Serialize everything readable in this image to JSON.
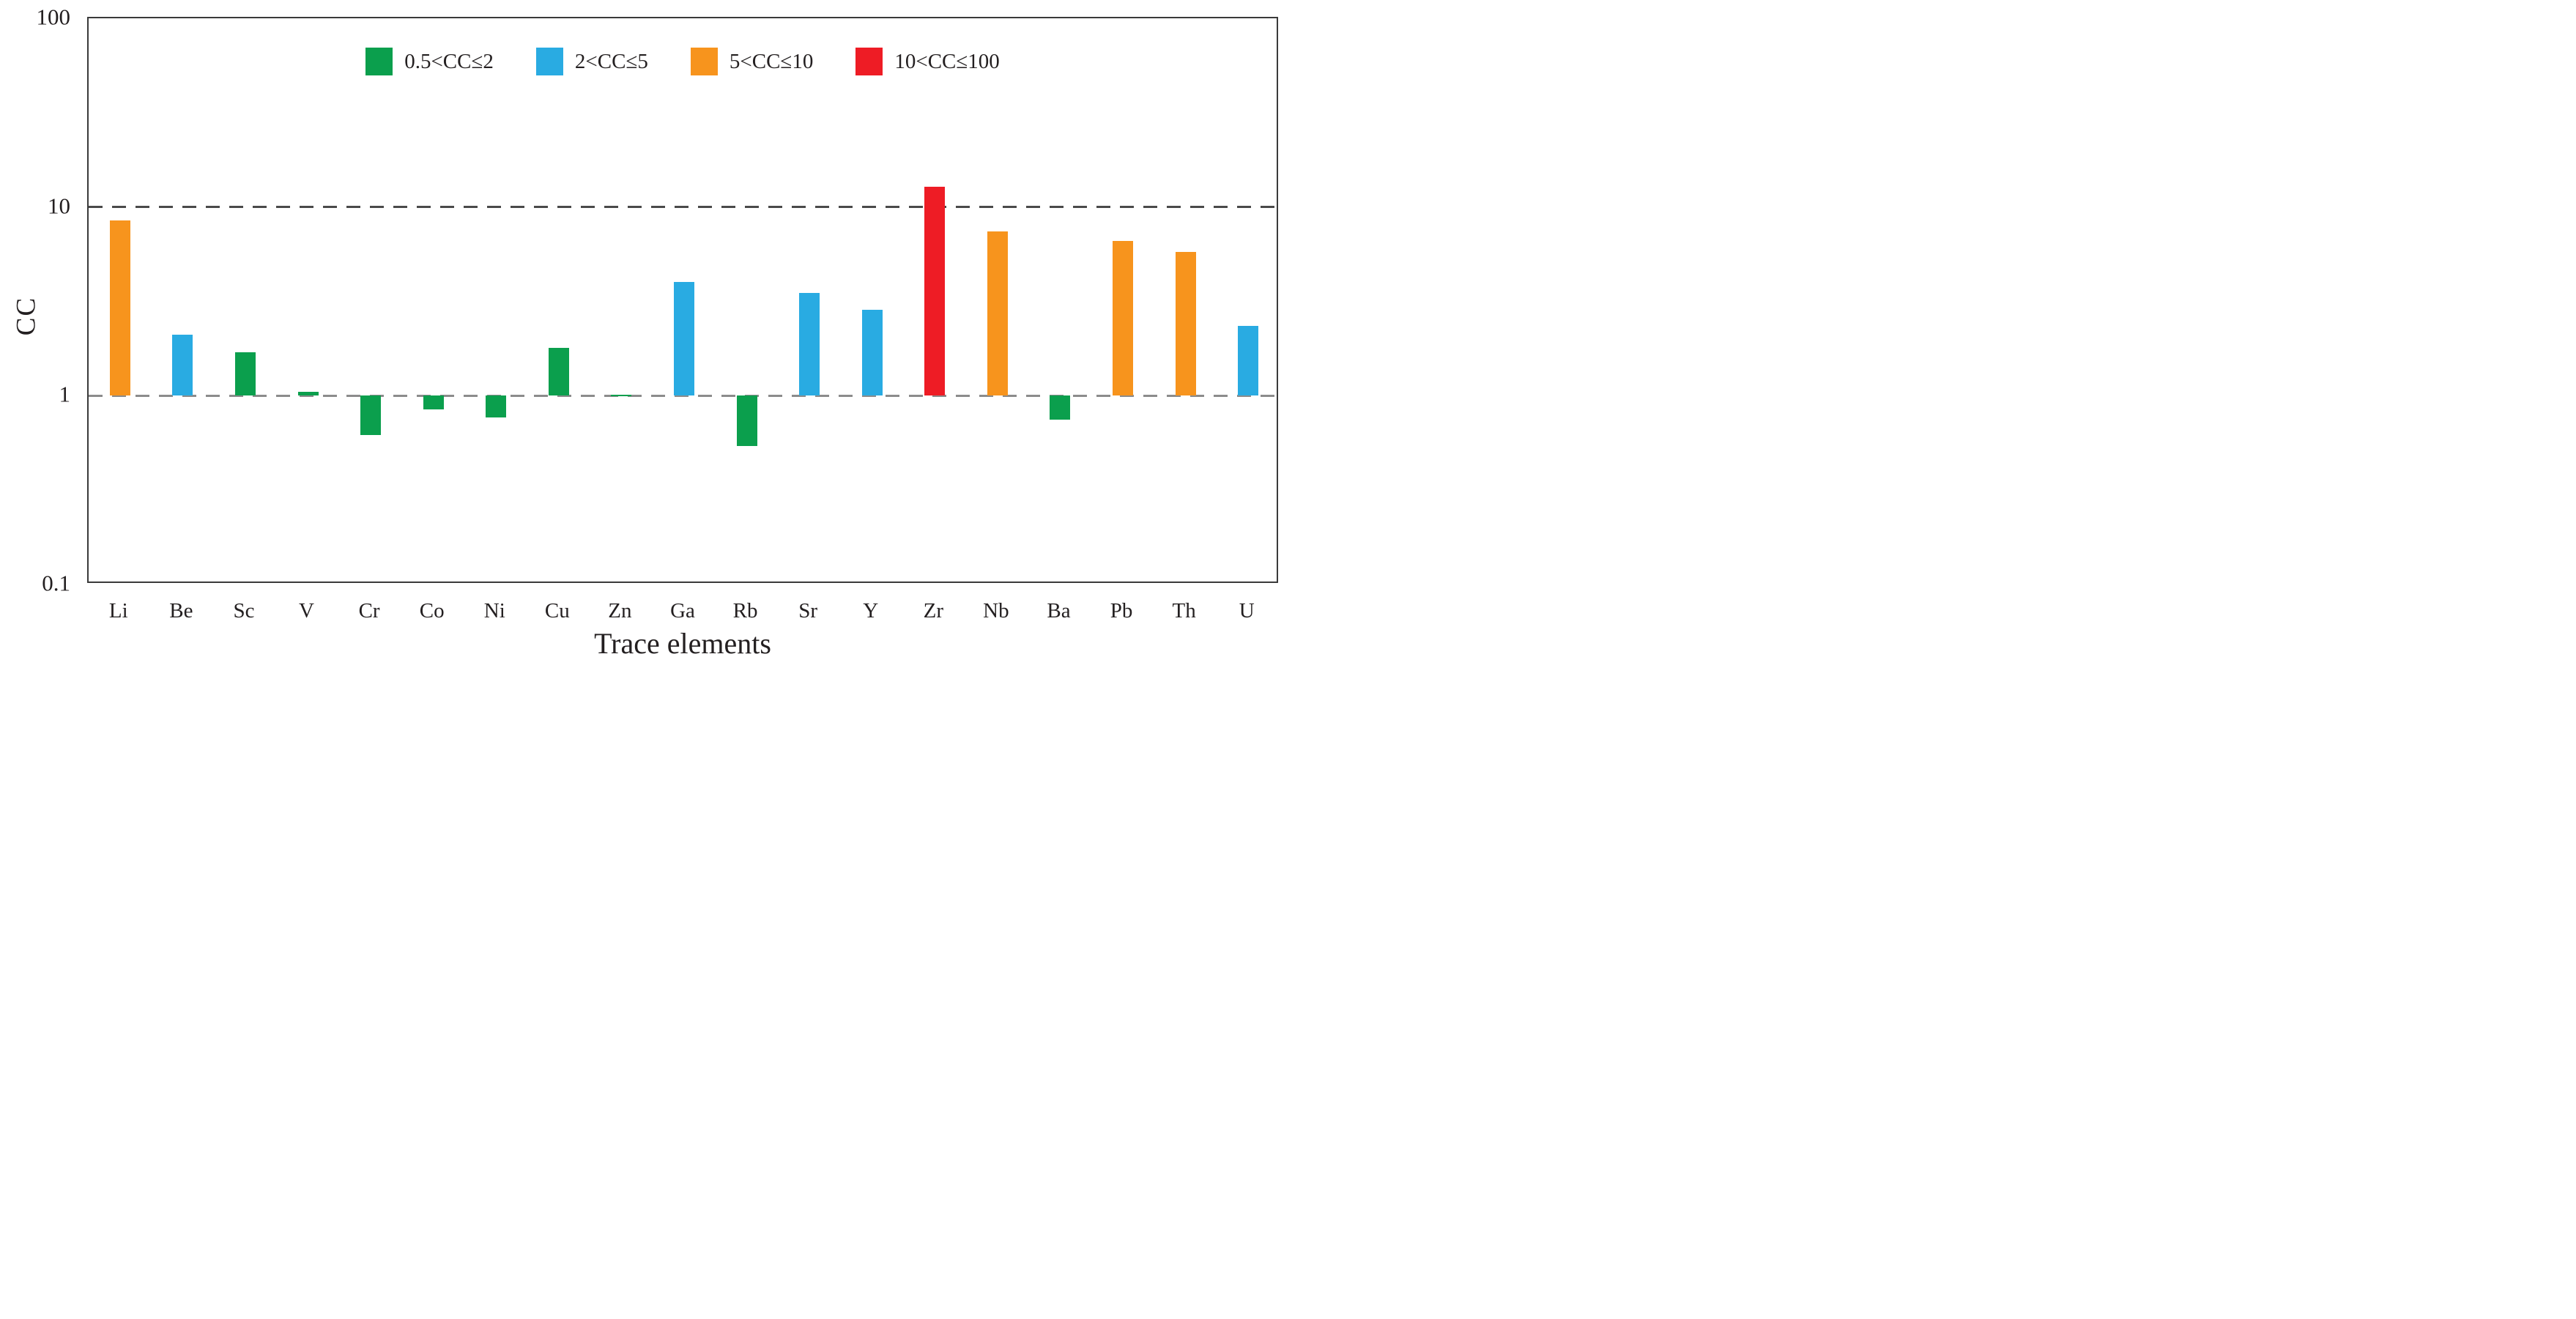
{
  "legend": [
    {
      "label": "0.5<CC≤2",
      "color": "#0B9F4D"
    },
    {
      "label": "2<CC≤5",
      "color": "#29ABE2"
    },
    {
      "label": "5<CC≤10",
      "color": "#F7941D"
    },
    {
      "label": "10<CC≤100",
      "color": "#EE1C25"
    }
  ],
  "chart_data": {
    "type": "bar",
    "title": "",
    "xlabel": "Trace elements",
    "ylabel": "CC",
    "y_scale": "log",
    "ylim": [
      0.1,
      100
    ],
    "y_ticks": [
      "100",
      "10",
      "1",
      "0.1"
    ],
    "gridlines": [
      {
        "value": 10,
        "color": "#4a4a4a"
      },
      {
        "value": 1,
        "color": "#8c8c8c"
      }
    ],
    "grid": "horizontal dashed lines at CC=1 and CC=10",
    "legend_position": "top-inside",
    "baseline": 1,
    "categories": [
      "Li",
      "Be",
      "Sc",
      "V",
      "Cr",
      "Co",
      "Ni",
      "Cu",
      "Zn",
      "Ga",
      "Rb",
      "Sr",
      "Y",
      "Zr",
      "Nb",
      "Ba",
      "Pb",
      "Th",
      "U"
    ],
    "values": [
      8.5,
      2.1,
      1.7,
      1.05,
      0.62,
      0.85,
      0.77,
      1.8,
      1.01,
      4.0,
      0.54,
      3.5,
      2.85,
      12.8,
      7.4,
      0.75,
      6.6,
      5.8,
      2.35
    ],
    "bar_colors": [
      "#F7941D",
      "#29ABE2",
      "#0B9F4D",
      "#0B9F4D",
      "#0B9F4D",
      "#0B9F4D",
      "#0B9F4D",
      "#0B9F4D",
      "#0B9F4D",
      "#29ABE2",
      "#0B9F4D",
      "#29ABE2",
      "#29ABE2",
      "#EE1C25",
      "#F7941D",
      "#0B9F4D",
      "#F7941D",
      "#F7941D",
      "#29ABE2"
    ]
  }
}
